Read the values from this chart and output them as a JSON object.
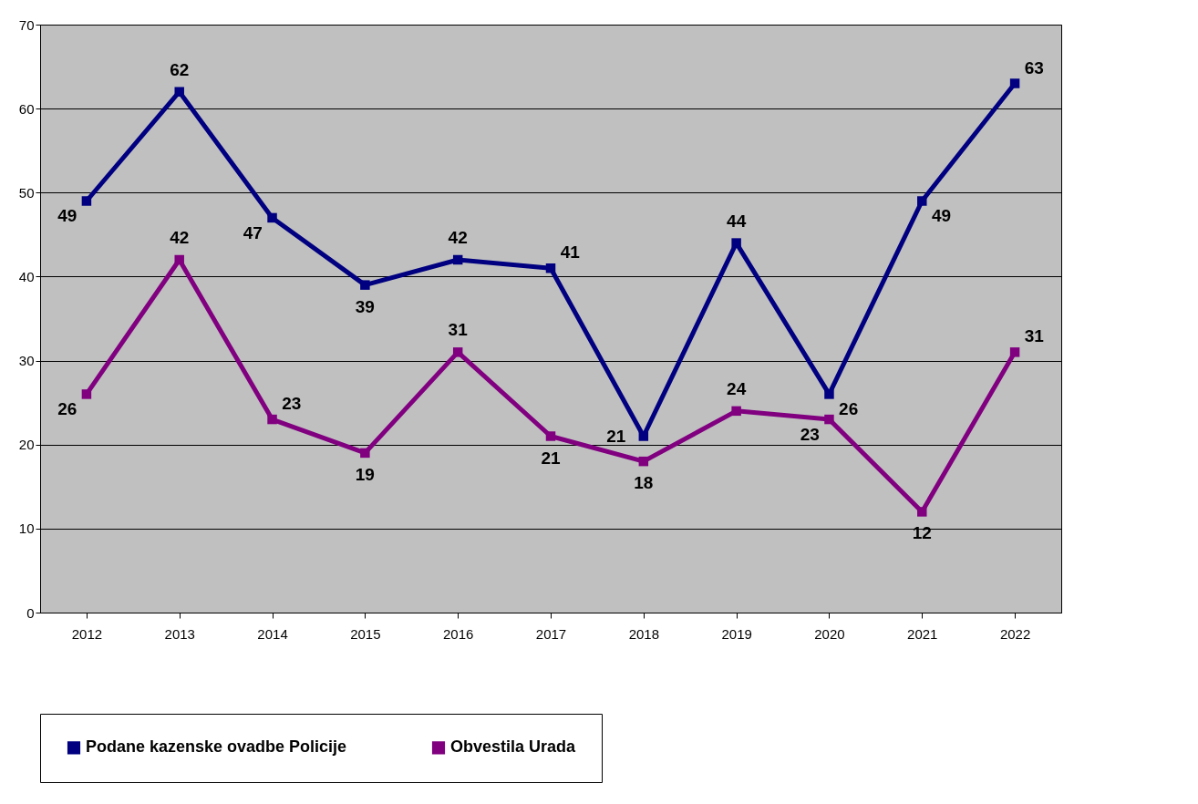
{
  "chart_data": {
    "type": "line",
    "categories": [
      "2012",
      "2013",
      "2014",
      "2015",
      "2016",
      "2017",
      "2018",
      "2019",
      "2020",
      "2021",
      "2022"
    ],
    "series": [
      {
        "name": "Podane kazenske ovadbe Policije",
        "color": "#000080",
        "values": [
          49,
          62,
          47,
          39,
          42,
          41,
          21,
          44,
          26,
          49,
          63
        ]
      },
      {
        "name": "Obvestila Urada",
        "color": "#800080",
        "values": [
          26,
          42,
          23,
          19,
          31,
          21,
          18,
          24,
          23,
          12,
          31
        ]
      }
    ],
    "ylim": [
      0,
      70
    ],
    "yticks": [
      0,
      10,
      20,
      30,
      40,
      50,
      60,
      70
    ],
    "grid": "y",
    "legend": "bottom",
    "marker": "square",
    "line_style": "solid",
    "data_labels": true
  }
}
